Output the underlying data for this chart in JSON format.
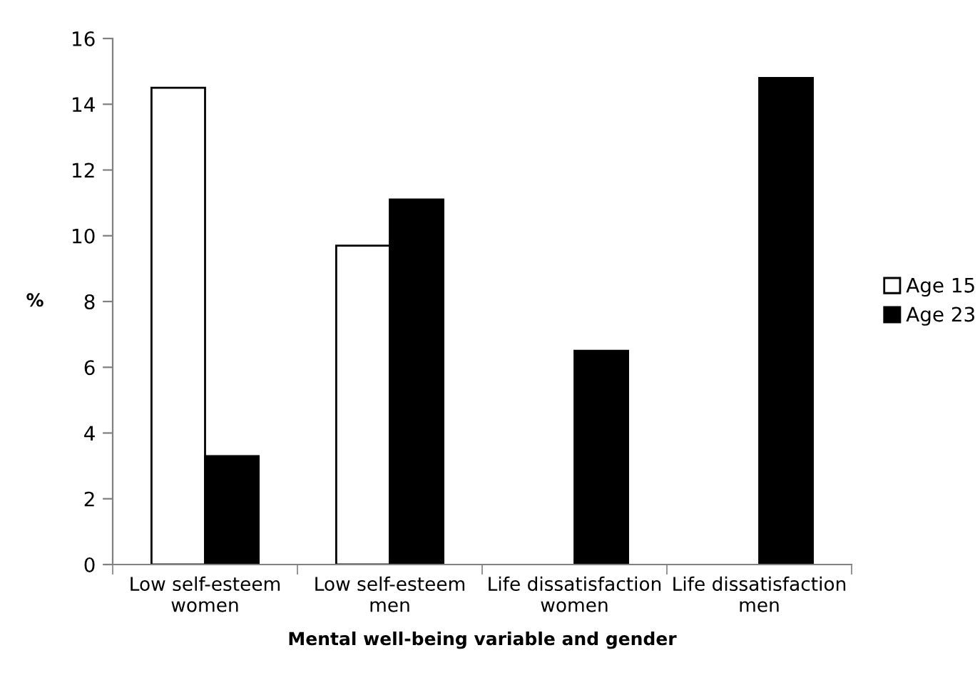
{
  "chart_data": {
    "type": "bar",
    "xlabel": "Mental well-being variable and gender",
    "ylabel": "%",
    "categories": [
      "Low self-esteem\nwomen",
      "Low self-esteem\nmen",
      "Life dissatisfaction\nwomen",
      "Life dissatisfaction\nmen"
    ],
    "series": [
      {
        "name": "Age 15",
        "color": "#ffffff",
        "values": [
          14.5,
          9.7,
          null,
          null
        ]
      },
      {
        "name": "Age 23",
        "color": "#000000",
        "values": [
          3.3,
          11.1,
          6.5,
          14.8
        ]
      }
    ],
    "ylim": [
      0,
      16
    ],
    "yticks": [
      0,
      2,
      4,
      6,
      8,
      10,
      12,
      14,
      16
    ],
    "grid": false,
    "legend": "right"
  }
}
